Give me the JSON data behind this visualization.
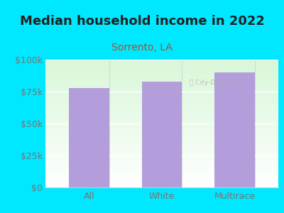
{
  "title": "Median household income in 2022",
  "subtitle": "Sorrento, LA",
  "categories": [
    "All",
    "White",
    "Multirace"
  ],
  "values": [
    78000,
    83000,
    90000
  ],
  "bar_color": "#b39ddb",
  "background_outer": "#00e8ff",
  "title_fontsize": 13,
  "subtitle_fontsize": 10,
  "tick_label_color": "#757575",
  "subtitle_color": "#a0522d",
  "ylim": [
    0,
    100000
  ],
  "yticks": [
    0,
    25000,
    50000,
    75000,
    100000
  ],
  "ytick_labels": [
    "$0",
    "$25k",
    "$50k",
    "$75k",
    "$100k"
  ]
}
